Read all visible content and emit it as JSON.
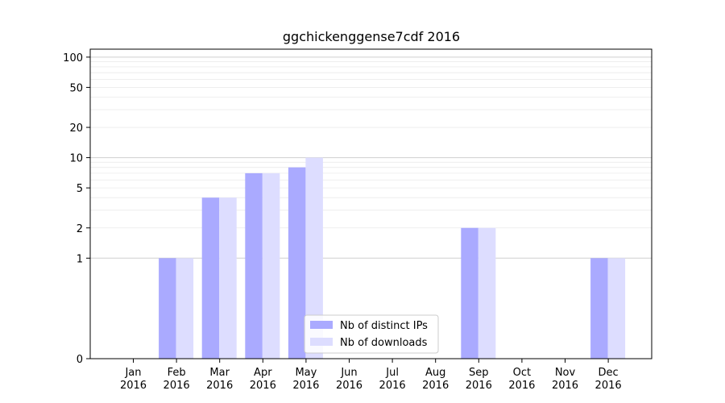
{
  "chart_data": {
    "type": "bar",
    "title": "ggchickenggense7cdf 2016",
    "xlabel": "",
    "ylabel": "",
    "yscale": "symlog",
    "ylim": [
      0,
      120
    ],
    "yticks": [
      {
        "value": 0,
        "label": "0"
      },
      {
        "value": 1,
        "label": "1"
      },
      {
        "value": 2,
        "label": "2"
      },
      {
        "value": 5,
        "label": "5"
      },
      {
        "value": 10,
        "label": "10"
      },
      {
        "value": 20,
        "label": "20"
      },
      {
        "value": 50,
        "label": "50"
      },
      {
        "value": 100,
        "label": "100"
      }
    ],
    "categories": [
      [
        "Jan",
        "2016"
      ],
      [
        "Feb",
        "2016"
      ],
      [
        "Mar",
        "2016"
      ],
      [
        "Apr",
        "2016"
      ],
      [
        "May",
        "2016"
      ],
      [
        "Jun",
        "2016"
      ],
      [
        "Jul",
        "2016"
      ],
      [
        "Aug",
        "2016"
      ],
      [
        "Sep",
        "2016"
      ],
      [
        "Oct",
        "2016"
      ],
      [
        "Nov",
        "2016"
      ],
      [
        "Dec",
        "2016"
      ]
    ],
    "series": [
      {
        "name": "Nb of distinct IPs",
        "color": "#aaaaff",
        "values": [
          0,
          1,
          4,
          7,
          8,
          0,
          0,
          0,
          2,
          0,
          0,
          1
        ]
      },
      {
        "name": "Nb of downloads",
        "color": "#ddddff",
        "values": [
          0,
          1,
          4,
          7,
          10,
          0,
          0,
          0,
          2,
          0,
          0,
          1
        ]
      }
    ],
    "grid": true,
    "legend_position": "bottom-center"
  }
}
